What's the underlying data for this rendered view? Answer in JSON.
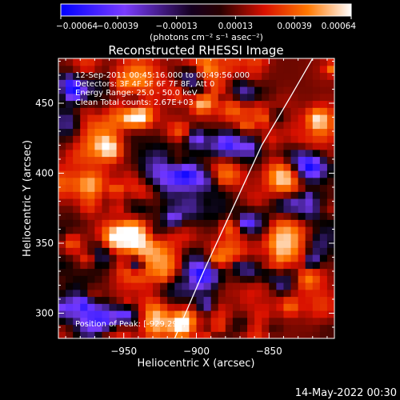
{
  "chart_data": {
    "type": "heatmap",
    "title": "Reconstructed RHESSI Image",
    "xlabel": "Heliocentric X (arcsec)",
    "ylabel": "Heliocentric Y (arcsec)",
    "x_range": [
      -995,
      -805
    ],
    "y_range": [
      282,
      482
    ],
    "x_ticks": [
      -950,
      -900,
      -850
    ],
    "y_ticks": [
      300,
      350,
      400,
      450
    ],
    "x_tick_labels": [
      "−950",
      "−900",
      "−850"
    ],
    "y_tick_labels": [
      "300",
      "350",
      "400",
      "450"
    ],
    "colorbar": {
      "range": [
        -0.00064,
        0.00064
      ],
      "ticks": [
        -0.00064,
        -0.00039,
        -0.00013,
        0.00013,
        0.00039,
        0.00064
      ],
      "tick_labels": [
        "−0.00064",
        "−0.00039",
        "−0.00013",
        "0.00013",
        "0.00039",
        "0.00064"
      ],
      "units_label": "(photons cm⁻² s⁻¹ asec⁻²)",
      "colors": [
        "#0000ff",
        "#7a3cff",
        "#000000",
        "#d81000",
        "#ff7800",
        "#ffffff"
      ]
    },
    "limb_curve": {
      "x": [
        -915,
        -895,
        -875,
        -855,
        -835,
        -820
      ],
      "y": [
        282,
        330,
        375,
        420,
        455,
        482
      ]
    },
    "annotations": {
      "time_range": "12-Sep-2011 00:45:16.000 to 00:49:56.000",
      "detectors": "Detectors: 3F 4F 5F 6F 7F 8F, Att 0",
      "energy_range": "Energy Range: 25.0 - 50.0 keV",
      "method_counts": "Clean     Total counts: 2.67E+03",
      "peak_position": "Position of Peak: [-929,295]"
    },
    "peak": {
      "x": -929,
      "y": 295
    }
  },
  "footer": {
    "timestamp": "14-May-2022 00:30"
  }
}
